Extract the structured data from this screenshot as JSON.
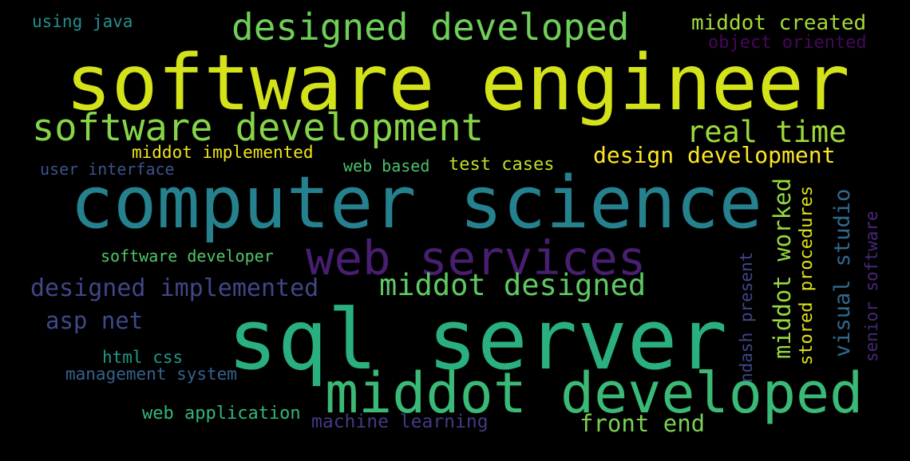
{
  "words": [
    {
      "text": "software engineer",
      "color": "#d4e21a"
    },
    {
      "text": "computer science",
      "color": "#26818e"
    },
    {
      "text": "sql server",
      "color": "#2ab07f"
    },
    {
      "text": "middot developed",
      "color": "#3aba76"
    },
    {
      "text": "web services",
      "color": "#481f70"
    },
    {
      "text": "designed developed",
      "color": "#6ece58"
    },
    {
      "text": "software development",
      "color": "#86d549"
    },
    {
      "text": "real time",
      "color": "#9dd93b"
    },
    {
      "text": "middot designed",
      "color": "#5ec962"
    },
    {
      "text": "design development",
      "color": "#fde725"
    },
    {
      "text": "middot created",
      "color": "#a2da37"
    },
    {
      "text": "object oriented",
      "color": "#46085c"
    },
    {
      "text": "using java",
      "color": "#21918c"
    },
    {
      "text": "middot implemented",
      "color": "#f1e51d"
    },
    {
      "text": "user interface",
      "color": "#3b528b"
    },
    {
      "text": "web based",
      "color": "#4ac16d"
    },
    {
      "text": "test cases",
      "color": "#c0df25"
    },
    {
      "text": "software developer",
      "color": "#52c569"
    },
    {
      "text": "designed implemented",
      "color": "#404688"
    },
    {
      "text": "asp net",
      "color": "#3e4989"
    },
    {
      "text": "html css",
      "color": "#1f988b"
    },
    {
      "text": "management system",
      "color": "#33638d"
    },
    {
      "text": "web application",
      "color": "#35b779"
    },
    {
      "text": "machine learning",
      "color": "#443983"
    },
    {
      "text": "front end",
      "color": "#7ad151"
    },
    {
      "text": "middot worked",
      "color": "#95d840"
    },
    {
      "text": "stored procedures",
      "color": "#dde318"
    },
    {
      "text": "visual studio",
      "color": "#31688e"
    },
    {
      "text": "senior software",
      "color": "#482878"
    },
    {
      "text": "ndash present",
      "color": "#3f4788"
    }
  ]
}
